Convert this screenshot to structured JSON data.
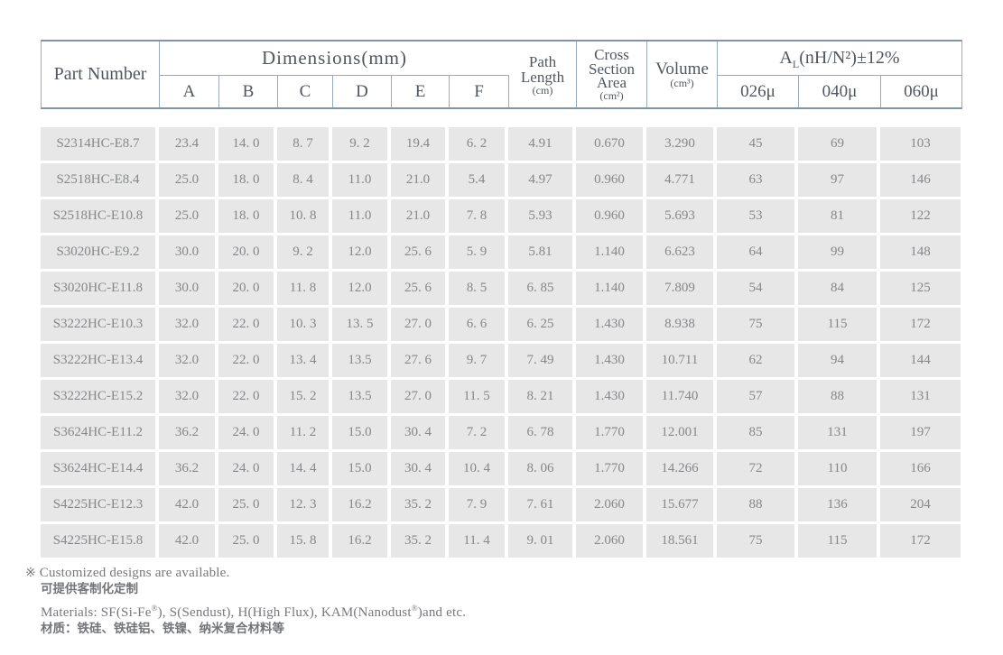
{
  "colors": {
    "border": "#8094aa",
    "border_inner": "#99aabc",
    "cell_background": "#e7e7e7",
    "header_text": "#51575f",
    "data_text": "#85878a",
    "note_text": "#76787b"
  },
  "table": {
    "header": {
      "part_number": "Part Number",
      "dimensions": "Dimensions(mm)",
      "dim_cols": [
        "A",
        "B",
        "C",
        "D",
        "E",
        "F"
      ],
      "path_length": {
        "line1": "Path",
        "line2": "Length",
        "unit": "(cm)"
      },
      "cross_section": {
        "line1": "Cross",
        "line2": "Section",
        "line3": "Area",
        "unit": "(cm²)"
      },
      "volume": {
        "label": "Volume",
        "unit": "(cm³)"
      },
      "al": {
        "main": "A",
        "sub": "L",
        "rest": "(nH/N²)±12%"
      },
      "al_cols": [
        "026μ",
        "040μ",
        "060μ"
      ]
    },
    "rows": [
      {
        "part": "S2314HC-E8.7",
        "values": [
          "23.4",
          "14. 0",
          "8. 7",
          "9. 2",
          "19.4",
          "6. 2",
          "4.91",
          "0.670",
          "3.290",
          "45",
          "69",
          "103"
        ]
      },
      {
        "part": "S2518HC-E8.4",
        "values": [
          "25.0",
          "18. 0",
          "8. 4",
          "11.0",
          "21.0",
          "5.4",
          "4.97",
          "0.960",
          "4.771",
          "63",
          "97",
          "146"
        ]
      },
      {
        "part": "S2518HC-E10.8",
        "values": [
          "25.0",
          "18. 0",
          "10. 8",
          "11.0",
          "21.0",
          "7. 8",
          "5.93",
          "0.960",
          "5.693",
          "53",
          "81",
          "122"
        ]
      },
      {
        "part": "S3020HC-E9.2",
        "values": [
          "30.0",
          "20. 0",
          "9. 2",
          "12.0",
          "25. 6",
          "5. 9",
          "5.81",
          "1.140",
          "6.623",
          "64",
          "99",
          "148"
        ]
      },
      {
        "part": "S3020HC-E11.8",
        "values": [
          "30.0",
          "20. 0",
          "11. 8",
          "12.0",
          "25. 6",
          "8. 5",
          "6. 85",
          "1.140",
          "7.809",
          "54",
          "84",
          "125"
        ]
      },
      {
        "part": "S3222HC-E10.3",
        "values": [
          "32.0",
          "22. 0",
          "10. 3",
          "13. 5",
          "27. 0",
          "6. 6",
          "6. 25",
          "1.430",
          "8.938",
          "75",
          "115",
          "172"
        ]
      },
      {
        "part": "S3222HC-E13.4",
        "values": [
          "32.0",
          "22. 0",
          "13. 4",
          "13.5",
          "27. 6",
          "9. 7",
          "7. 49",
          "1.430",
          "10.711",
          "62",
          "94",
          "144"
        ]
      },
      {
        "part": "S3222HC-E15.2",
        "values": [
          "32.0",
          "22. 0",
          "15. 2",
          "13.5",
          "27. 0",
          "11. 5",
          "8. 21",
          "1.430",
          "11.740",
          "57",
          "88",
          "131"
        ]
      },
      {
        "part": "S3624HC-E11.2",
        "values": [
          "36.2",
          "24. 0",
          "11. 2",
          "15.0",
          "30. 4",
          "7. 2",
          "6. 78",
          "1.770",
          "12.001",
          "85",
          "131",
          "197"
        ]
      },
      {
        "part": "S3624HC-E14.4",
        "values": [
          "36.2",
          "24. 0",
          "14. 4",
          "15.0",
          "30. 4",
          "10. 4",
          "8. 06",
          "1.770",
          "14.266",
          "72",
          "110",
          "166"
        ]
      },
      {
        "part": "S4225HC-E12.3",
        "values": [
          "42.0",
          "25. 0",
          "12. 3",
          "16.2",
          "35. 2",
          "7. 9",
          "7. 61",
          "2.060",
          "15.677",
          "88",
          "136",
          "204"
        ]
      },
      {
        "part": "S4225HC-E15.8",
        "values": [
          "42.0",
          "25. 0",
          "15. 8",
          "16.2",
          "35. 2",
          "11. 4",
          "9. 01",
          "2.060",
          "18.561",
          "75",
          "115",
          "172"
        ]
      }
    ]
  },
  "footnotes": {
    "marker": "※",
    "custom_en": "Customized designs are available.",
    "custom_zh": "可提供客制化定制",
    "materials_part1": "Materials: SF(Si-Fe",
    "materials_reg1": "®",
    "materials_part2": "), S(Sendust), H(High Flux), KAM(Nanodust",
    "materials_reg2": "®",
    "materials_part3": ")and etc.",
    "materials_zh": "材质：铁硅、铁硅铝、铁镍、纳米复合材料等"
  }
}
